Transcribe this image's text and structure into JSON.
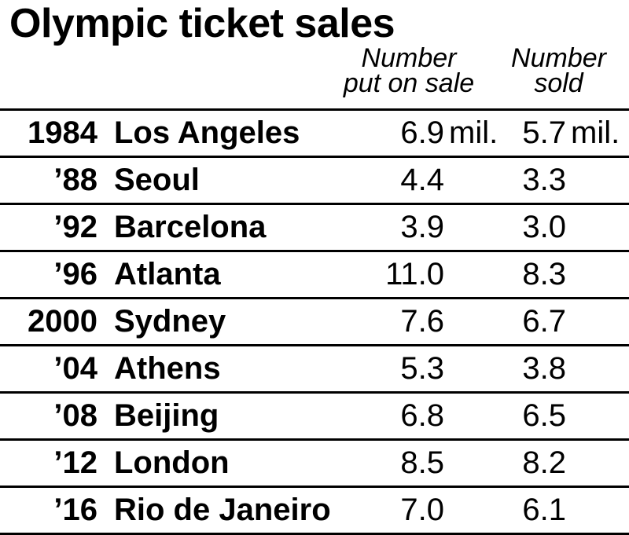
{
  "chart_data": {
    "type": "table",
    "title": "Olympic ticket sales",
    "columns": [
      {
        "line1": "Number",
        "line2": "put on sale"
      },
      {
        "line1": "Number",
        "line2": "sold"
      }
    ],
    "unit": "mil.",
    "rows": [
      {
        "year": "1984",
        "city": "Los Angeles",
        "on_sale": "6.9",
        "sold": "5.7"
      },
      {
        "year": "’88",
        "city": "Seoul",
        "on_sale": "4.4",
        "sold": "3.3"
      },
      {
        "year": "’92",
        "city": "Barcelona",
        "on_sale": "3.9",
        "sold": "3.0"
      },
      {
        "year": "’96",
        "city": "Atlanta",
        "on_sale": "11.0",
        "sold": "8.3"
      },
      {
        "year": "2000",
        "city": "Sydney",
        "on_sale": "7.6",
        "sold": "6.7"
      },
      {
        "year": "’04",
        "city": "Athens",
        "on_sale": "5.3",
        "sold": "3.8"
      },
      {
        "year": "’08",
        "city": "Beijing",
        "on_sale": "6.8",
        "sold": "6.5"
      },
      {
        "year": "’12",
        "city": "London",
        "on_sale": "8.5",
        "sold": "8.2"
      },
      {
        "year": "’16",
        "city": "Rio de Janeiro",
        "on_sale": "7.0",
        "sold": "6.1"
      }
    ]
  }
}
